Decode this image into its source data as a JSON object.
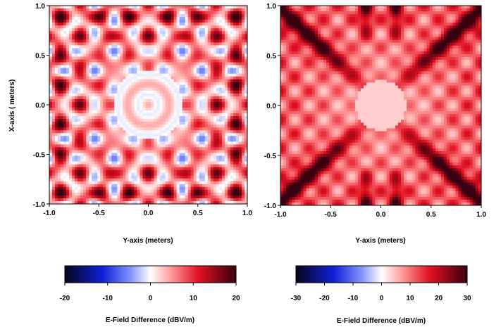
{
  "chart_data": [
    {
      "type": "heatmap",
      "title": "",
      "xlabel": "Y-axis (meters)",
      "ylabel": "X-axis ( meters)",
      "xlim": [
        -1.0,
        1.0
      ],
      "ylim": [
        -1.0,
        1.0
      ],
      "xticks": [
        "-1.0",
        "-0.5",
        "0.0",
        "0.5",
        "1.0"
      ],
      "yticks": [
        "1.0",
        "0.5",
        "0.0",
        "-0.5",
        "-1.0"
      ],
      "colorbar": {
        "label": "E-Field Difference (dBV/m)",
        "range": [
          -20,
          20
        ],
        "ticks": [
          "-20",
          "-10",
          "0",
          "10",
          "20"
        ],
        "colormap": "seismic"
      },
      "pattern": "rippled square interference field, strongest near edges and corners, pale near center"
    },
    {
      "type": "heatmap",
      "title": "",
      "xlabel": "Y-axis (meters)",
      "ylabel": "",
      "xlim": [
        -1.0,
        1.0
      ],
      "ylim": [
        -1.0,
        1.0
      ],
      "xticks": [
        "-1.0",
        "-0.5",
        "0.0",
        "0.5",
        "1.0"
      ],
      "yticks": [
        "1.0",
        "0.5",
        "0.0",
        "-0.5",
        "-1.0"
      ],
      "colorbar": {
        "label": "E-Field Difference (dBV/m)",
        "range": [
          -30,
          30
        ],
        "ticks": [
          "-30",
          "-20",
          "-10",
          "0",
          "10",
          "20",
          "30"
        ],
        "colormap": "seismic"
      },
      "pattern": "X-shaped diagonal bands of strong positive difference radiating from center toward corners"
    }
  ],
  "colors": {
    "cmap_low": "#0a0a2a",
    "cmap_blue": "#1230ff",
    "cmap_zero": "#ffffff",
    "cmap_red": "#e01020",
    "cmap_high": "#3a0010"
  }
}
